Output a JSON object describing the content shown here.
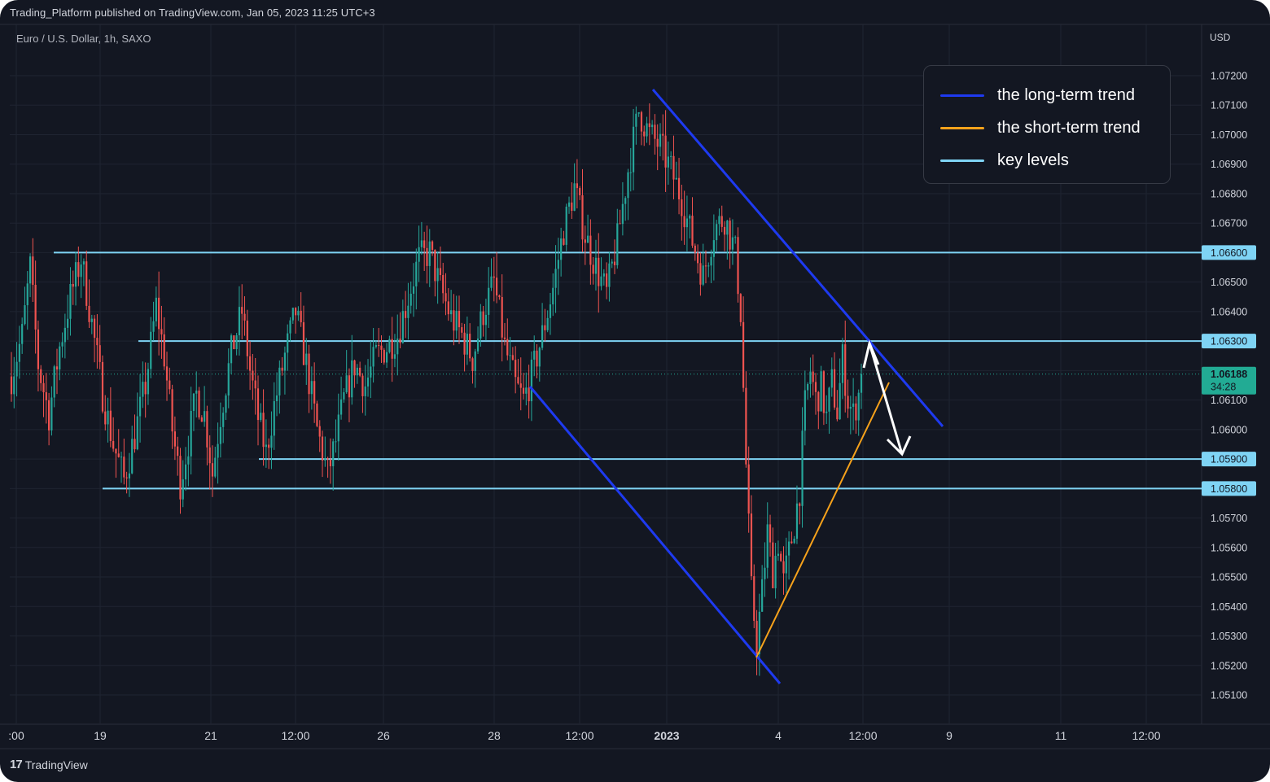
{
  "header": {
    "published": "Trading_Platform published on TradingView.com, Jan 05, 2023 11:25 UTC+3",
    "symbol": "Euro / U.S. Dollar, 1h, SAXO",
    "currency": "USD"
  },
  "footer": {
    "logo_mark": "17",
    "logo_text": "TradingView"
  },
  "legend": {
    "items": [
      {
        "label": "the long-term trend",
        "color": "#1e3af0"
      },
      {
        "label": "the short-term trend",
        "color": "#f7a21b"
      },
      {
        "label": "key levels",
        "color": "#7fd4f5"
      }
    ]
  },
  "price_badge": {
    "price": "1.06188",
    "countdown": "34:28",
    "color": "#22ab94"
  },
  "colors": {
    "background": "#131722",
    "up": "#26a69a",
    "down": "#ef5350",
    "grid": "#1f2431"
  },
  "chart_data": {
    "type": "candlestick",
    "title": "Euro / U.S. Dollar, 1h, SAXO",
    "ylabel": "USD",
    "ylim": [
      1.0505,
      1.0735
    ],
    "y_ticks": [
      "1.05100",
      "1.05200",
      "1.05300",
      "1.05400",
      "1.05500",
      "1.05600",
      "1.05700",
      "1.05800",
      "1.05900",
      "1.06000",
      "1.06100",
      "1.06200",
      "1.06300",
      "1.06400",
      "1.06500",
      "1.06600",
      "1.06700",
      "1.06800",
      "1.06900",
      "1.07000",
      "1.07100",
      "1.07200"
    ],
    "x_ticks": [
      ":00",
      "19",
      "21",
      "12:00",
      "26",
      "28",
      "12:00",
      "2023",
      "4",
      "12:00",
      "9",
      "11",
      "12:00"
    ],
    "x_tick_bold": [
      false,
      false,
      false,
      false,
      false,
      false,
      false,
      true,
      false,
      false,
      false,
      false,
      false
    ],
    "key_levels": [
      "1.06600",
      "1.06300",
      "1.05900",
      "1.05800"
    ],
    "current_price": 1.06188,
    "price_path": [
      [
        0,
        1.0618
      ],
      [
        4,
        1.0632
      ],
      [
        7,
        1.0655
      ],
      [
        10,
        1.0622
      ],
      [
        14,
        1.0605
      ],
      [
        18,
        1.0628
      ],
      [
        22,
        1.0645
      ],
      [
        26,
        1.0658
      ],
      [
        30,
        1.0636
      ],
      [
        34,
        1.0612
      ],
      [
        38,
        1.0595
      ],
      [
        42,
        1.0583
      ],
      [
        46,
        1.0598
      ],
      [
        50,
        1.0615
      ],
      [
        54,
        1.0642
      ],
      [
        57,
        1.0625
      ],
      [
        60,
        1.06
      ],
      [
        63,
        1.0582
      ],
      [
        66,
        1.0596
      ],
      [
        69,
        1.0612
      ],
      [
        72,
        1.0605
      ],
      [
        75,
        1.0585
      ],
      [
        78,
        1.0605
      ],
      [
        82,
        1.0626
      ],
      [
        86,
        1.064
      ],
      [
        89,
        1.062
      ],
      [
        92,
        1.0604
      ],
      [
        95,
        1.0592
      ],
      [
        98,
        1.0608
      ],
      [
        102,
        1.0625
      ],
      [
        106,
        1.064
      ],
      [
        110,
        1.0622
      ],
      [
        114,
        1.06
      ],
      [
        118,
        1.0585
      ],
      [
        121,
        1.0596
      ],
      [
        124,
        1.061
      ],
      [
        128,
        1.0622
      ],
      [
        132,
        1.0615
      ],
      [
        136,
        1.0625
      ],
      [
        140,
        1.0628
      ],
      [
        144,
        1.0632
      ],
      [
        148,
        1.0645
      ],
      [
        152,
        1.0658
      ],
      [
        156,
        1.066
      ],
      [
        160,
        1.0648
      ],
      [
        164,
        1.0638
      ],
      [
        168,
        1.0632
      ],
      [
        172,
        1.0624
      ],
      [
        176,
        1.064
      ],
      [
        180,
        1.065
      ],
      [
        184,
        1.0628
      ],
      [
        188,
        1.0615
      ],
      [
        191,
        1.061
      ],
      [
        194,
        1.0618
      ],
      [
        198,
        1.0632
      ],
      [
        202,
        1.0648
      ],
      [
        206,
        1.0668
      ],
      [
        210,
        1.0682
      ],
      [
        214,
        1.0666
      ],
      [
        218,
        1.0655
      ],
      [
        222,
        1.0646
      ],
      [
        226,
        1.0664
      ],
      [
        230,
        1.0688
      ],
      [
        234,
        1.0708
      ],
      [
        238,
        1.07
      ],
      [
        242,
        1.0696
      ],
      [
        246,
        1.0688
      ],
      [
        250,
        1.0678
      ],
      [
        254,
        1.0664
      ],
      [
        258,
        1.0652
      ],
      [
        262,
        1.0668
      ],
      [
        266,
        1.0672
      ],
      [
        270,
        1.066
      ],
      [
        272,
        1.064
      ],
      [
        274,
        1.0588
      ],
      [
        276,
        1.0545
      ],
      [
        278,
        1.0528
      ],
      [
        280,
        1.0545
      ],
      [
        282,
        1.0565
      ],
      [
        284,
        1.0552
      ],
      [
        286,
        1.0562
      ],
      [
        288,
        1.0548
      ],
      [
        290,
        1.0558
      ],
      [
        292,
        1.0568
      ],
      [
        294,
        1.058
      ],
      [
        296,
        1.0608
      ],
      [
        298,
        1.062
      ],
      [
        300,
        1.061
      ],
      [
        302,
        1.0614
      ],
      [
        304,
        1.0604
      ],
      [
        306,
        1.0616
      ],
      [
        308,
        1.0606
      ],
      [
        310,
        1.0624
      ],
      [
        312,
        1.061
      ],
      [
        314,
        1.0605
      ],
      [
        316,
        1.0612
      ],
      [
        317,
        1.06188
      ]
    ],
    "long_term_trend": [
      [
        [
          802,
          110
        ],
        [
          1158,
          524
        ]
      ],
      [
        [
          651,
          475
        ],
        [
          958,
          840
        ]
      ]
    ],
    "short_term_trend": [
      [
        [
          929,
          808
        ],
        [
          1092,
          470
        ]
      ]
    ],
    "forecast_arrow": [
      [
        1068,
        422
      ],
      [
        1108,
        558
      ]
    ]
  }
}
